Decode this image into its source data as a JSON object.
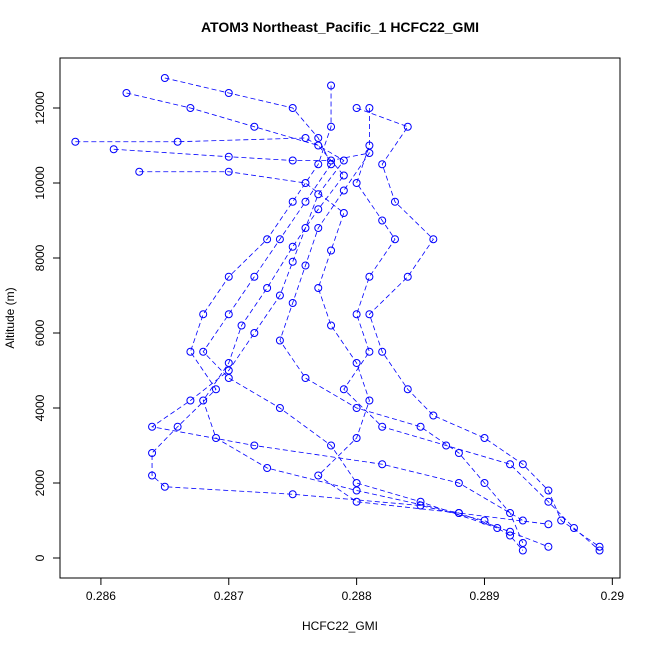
{
  "chart_data": {
    "type": "scatter",
    "title": "ATOM3 Northeast_Pacific_1 HCFC22_GMI",
    "x_label": "HCFC22_GMI",
    "y_label": "Altitude (m)",
    "xlim": [
      0.28568,
      0.29006
    ],
    "ylim": [
      -533,
      13333
    ],
    "xticks": [
      0.286,
      0.287,
      0.288,
      0.289,
      0.29
    ],
    "yticks": [
      0,
      2000,
      4000,
      6000,
      8000,
      10000,
      12000
    ],
    "series": [
      {
        "color": "#0000ff",
        "x": [
          0.2878,
          0.2878,
          0.2877,
          0.2875,
          0.2873,
          0.287,
          0.2868,
          0.2867,
          0.2869,
          0.2866,
          0.2864,
          0.2864,
          0.2865,
          0.2875,
          0.2885,
          0.289,
          0.2892,
          0.2893
        ],
        "y": [
          12600,
          11500,
          10500,
          9500,
          8500,
          7500,
          6500,
          5500,
          4500,
          3500,
          2800,
          2200,
          1900,
          1700,
          1400,
          1000,
          600,
          200
        ]
      },
      {
        "color": "#0000ff",
        "x": [
          0.2881,
          0.2881,
          0.288,
          0.2882,
          0.2883,
          0.2881,
          0.288,
          0.2881,
          0.2879,
          0.2882,
          0.2887,
          0.2892,
          0.2895,
          0.2897,
          0.2899
        ],
        "y": [
          12000,
          11000,
          10000,
          9000,
          8500,
          7500,
          6500,
          5500,
          4500,
          3500,
          3000,
          2500,
          1500,
          800,
          200
        ]
      },
      {
        "color": "#0000ff",
        "x": [
          0.2865,
          0.287,
          0.2875,
          0.2877,
          0.2878,
          0.2876,
          0.2874,
          0.2872,
          0.287,
          0.2868,
          0.287,
          0.2874,
          0.2878,
          0.288,
          0.2885,
          0.2891
        ],
        "y": [
          12800,
          12400,
          12000,
          11200,
          10500,
          9500,
          8500,
          7500,
          6500,
          5500,
          4800,
          4000,
          3000,
          2000,
          1500,
          800
        ]
      },
      {
        "color": "#0000ff",
        "x": [
          0.2862,
          0.2867,
          0.2872,
          0.2877,
          0.2879,
          0.2877,
          0.2875,
          0.2873,
          0.2871,
          0.287,
          0.2868,
          0.2869,
          0.2873,
          0.288,
          0.2888,
          0.2892,
          0.2895
        ],
        "y": [
          12400,
          12000,
          11500,
          11000,
          10200,
          9300,
          8300,
          7200,
          6200,
          5200,
          4200,
          3200,
          2400,
          1800,
          1200,
          700,
          300
        ]
      },
      {
        "color": "#0000ff",
        "x": [
          0.2858,
          0.2866,
          0.2876,
          0.2879,
          0.2877,
          0.2876,
          0.2875,
          0.2874,
          0.2872,
          0.287,
          0.2867,
          0.2864,
          0.2872,
          0.2882,
          0.2888,
          0.2893
        ],
        "y": [
          11100,
          11100,
          11200,
          10600,
          9700,
          8800,
          7900,
          7000,
          6000,
          5000,
          4200,
          3500,
          3000,
          2500,
          2000,
          1000
        ]
      },
      {
        "color": "#0000ff",
        "x": [
          0.2861,
          0.287,
          0.2875,
          0.2878,
          0.2881,
          0.2879,
          0.2877,
          0.2876,
          0.2875,
          0.2874,
          0.2876,
          0.288,
          0.2885,
          0.2888,
          0.289,
          0.2892,
          0.2893
        ],
        "y": [
          10900,
          10700,
          10600,
          10600,
          10800,
          9800,
          8800,
          7800,
          6800,
          5800,
          4800,
          4000,
          3500,
          2800,
          2000,
          1200,
          400
        ]
      },
      {
        "color": "#0000ff",
        "x": [
          0.2863,
          0.287,
          0.2876,
          0.2879,
          0.2878,
          0.2877,
          0.2878,
          0.288,
          0.2881,
          0.288,
          0.2877,
          0.288,
          0.2888,
          0.2895
        ],
        "y": [
          10300,
          10300,
          10000,
          9200,
          8200,
          7200,
          6200,
          5200,
          4200,
          3200,
          2200,
          1500,
          1200,
          900
        ]
      },
      {
        "color": "#0000ff",
        "x": [
          0.288,
          0.2884,
          0.2882,
          0.2883,
          0.2886,
          0.2884,
          0.2881,
          0.2882,
          0.2884,
          0.2886,
          0.289,
          0.2893,
          0.2895,
          0.2896,
          0.2899
        ],
        "y": [
          12000,
          11500,
          10500,
          9500,
          8500,
          7500,
          6500,
          5500,
          4500,
          3800,
          3200,
          2500,
          1800,
          1000,
          300
        ]
      }
    ]
  }
}
